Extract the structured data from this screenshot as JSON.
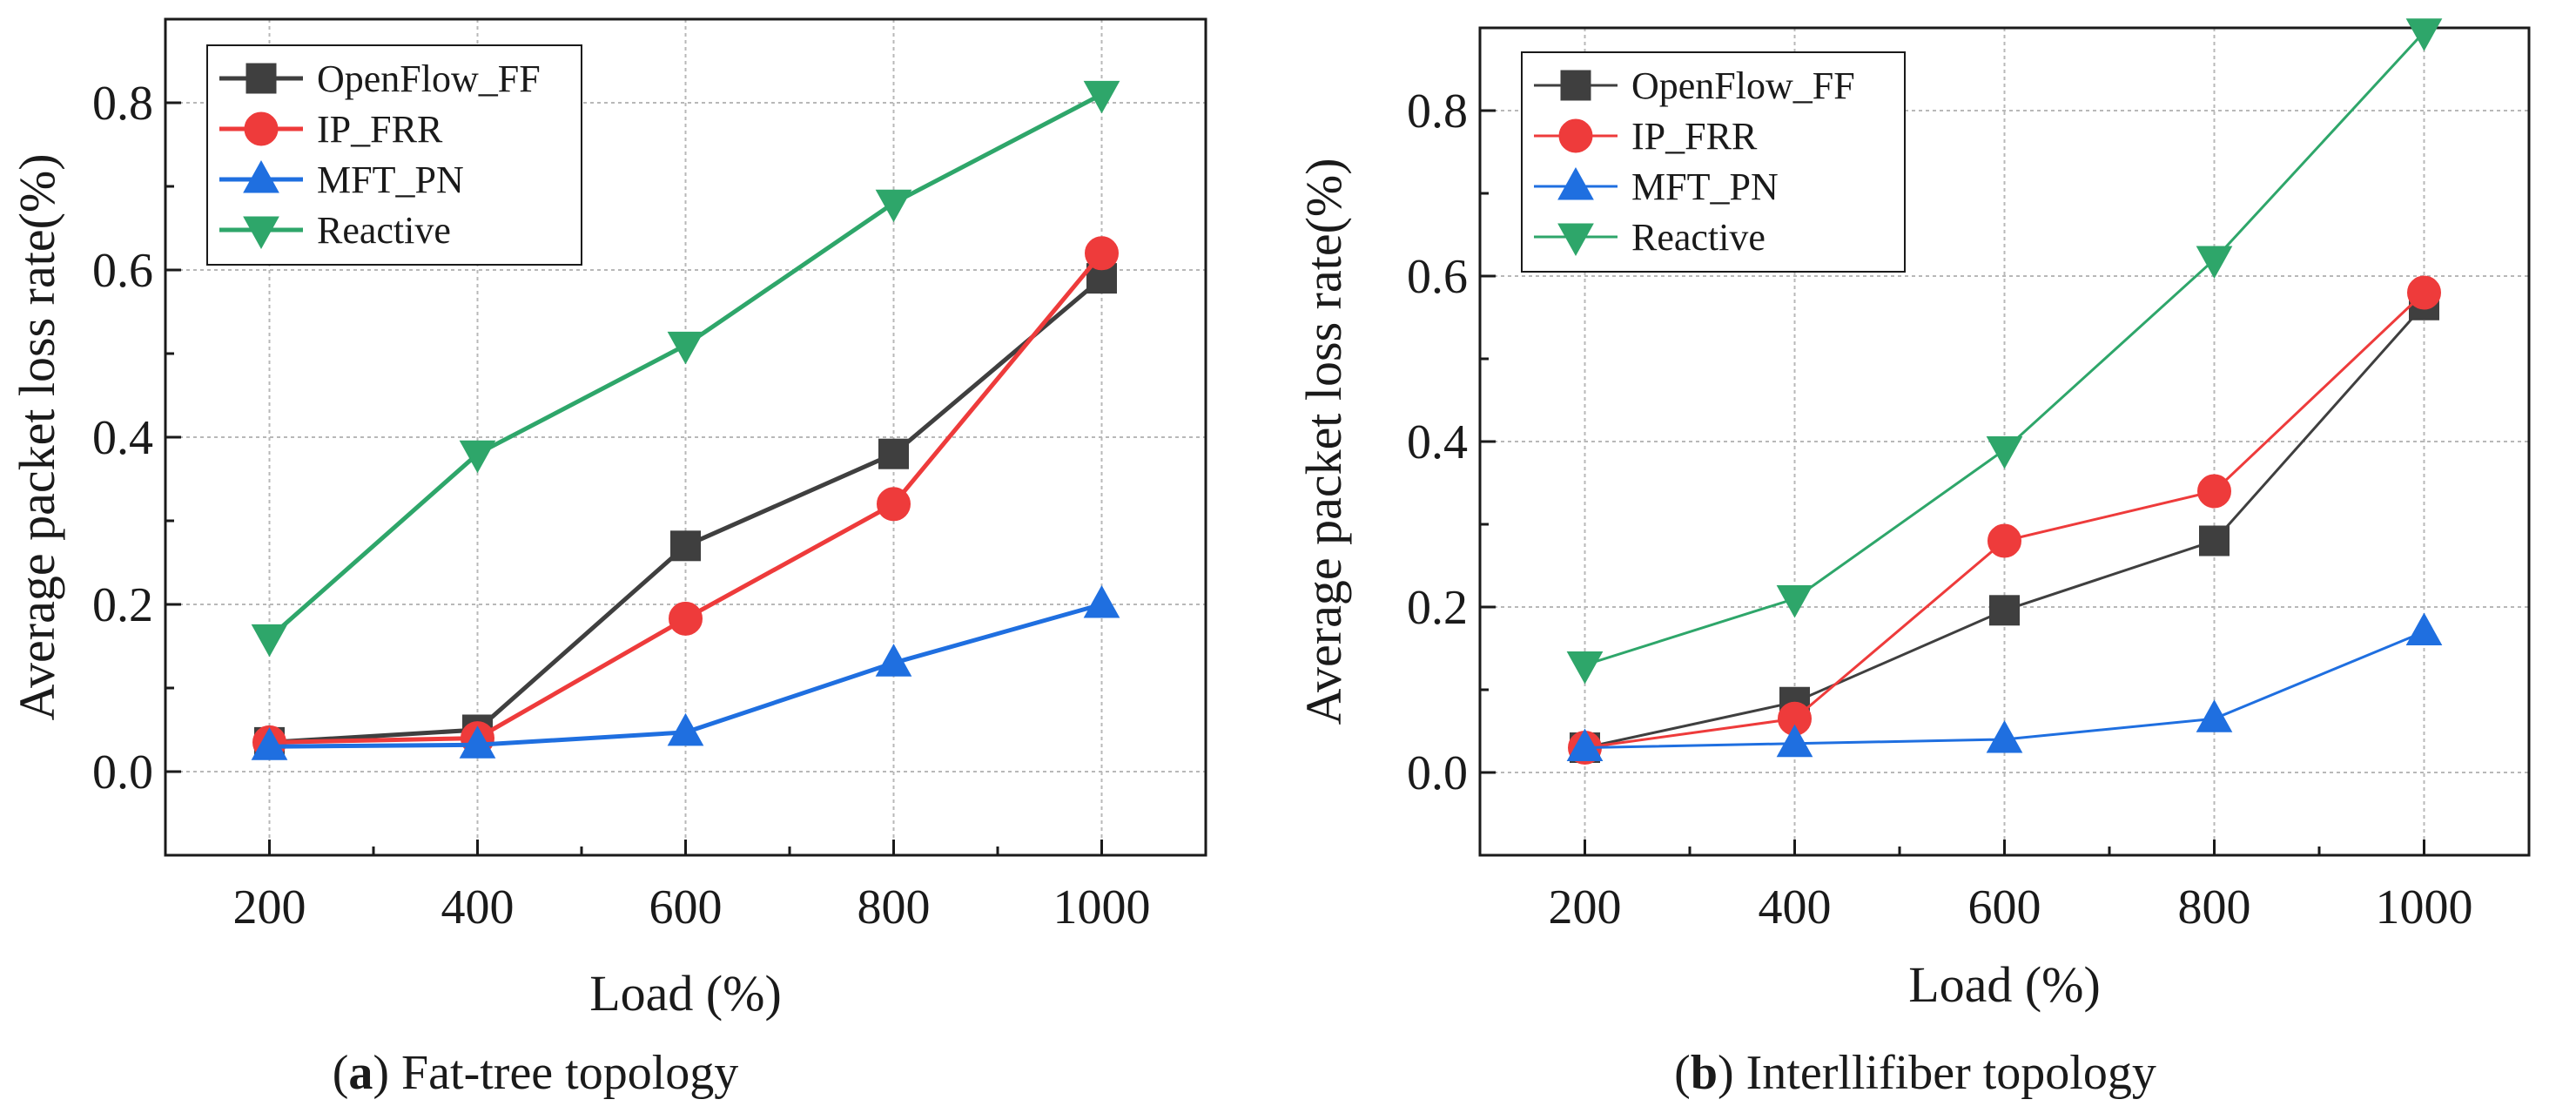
{
  "chart_data": [
    {
      "type": "line",
      "caption_letter": "a",
      "caption_text": "Fat-tree topology",
      "xlabel": "Load (%)",
      "ylabel": "Average packet loss rate(%)",
      "categories": [
        200,
        400,
        600,
        800,
        1000
      ],
      "x_ticks": [
        "200",
        "400",
        "600",
        "800",
        "1000"
      ],
      "y_ticks": [
        "0.0",
        "0.2",
        "0.4",
        "0.6",
        "0.8"
      ],
      "xlim": [
        100,
        1100
      ],
      "ylim": [
        -0.1,
        0.9
      ],
      "grid": true,
      "legend_position": "top-left",
      "series": [
        {
          "name": "OpenFlow_FF",
          "marker": "square",
          "color": "#3f3f3f",
          "values": [
            0.035,
            0.05,
            0.27,
            0.38,
            0.59
          ]
        },
        {
          "name": "IP_FRR",
          "marker": "circle",
          "color": "#ee3b3b",
          "values": [
            0.035,
            0.04,
            0.183,
            0.32,
            0.62
          ]
        },
        {
          "name": "MFT_PN",
          "marker": "triangle-up",
          "color": "#1f6fe0",
          "values": [
            0.03,
            0.032,
            0.047,
            0.13,
            0.2
          ]
        },
        {
          "name": "Reactive",
          "marker": "triangle-down",
          "color": "#2ea66a",
          "values": [
            0.16,
            0.38,
            0.51,
            0.68,
            0.81
          ]
        }
      ]
    },
    {
      "type": "line",
      "caption_letter": "b",
      "caption_text": "Interllifiber topology",
      "xlabel": "Load (%)",
      "ylabel": "Average packet loss rate(%)",
      "categories": [
        200,
        400,
        600,
        800,
        1000
      ],
      "x_ticks": [
        "200",
        "400",
        "600",
        "800",
        "1000"
      ],
      "y_ticks": [
        "0.0",
        "0.2",
        "0.4",
        "0.6",
        "0.8"
      ],
      "xlim": [
        100,
        1100
      ],
      "ylim": [
        -0.1,
        0.9
      ],
      "grid": true,
      "legend_position": "top-left",
      "series": [
        {
          "name": "OpenFlow_FF",
          "marker": "square",
          "color": "#3f3f3f",
          "values": [
            0.03,
            0.085,
            0.196,
            0.28,
            0.565
          ]
        },
        {
          "name": "IP_FRR",
          "marker": "circle",
          "color": "#ee3b3b",
          "values": [
            0.03,
            0.065,
            0.28,
            0.34,
            0.58
          ]
        },
        {
          "name": "MFT_PN",
          "marker": "triangle-up",
          "color": "#1f6fe0",
          "values": [
            0.03,
            0.035,
            0.04,
            0.065,
            0.17
          ]
        },
        {
          "name": "Reactive",
          "marker": "triangle-down",
          "color": "#2ea66a",
          "values": [
            0.13,
            0.21,
            0.39,
            0.62,
            0.895
          ]
        }
      ]
    }
  ]
}
